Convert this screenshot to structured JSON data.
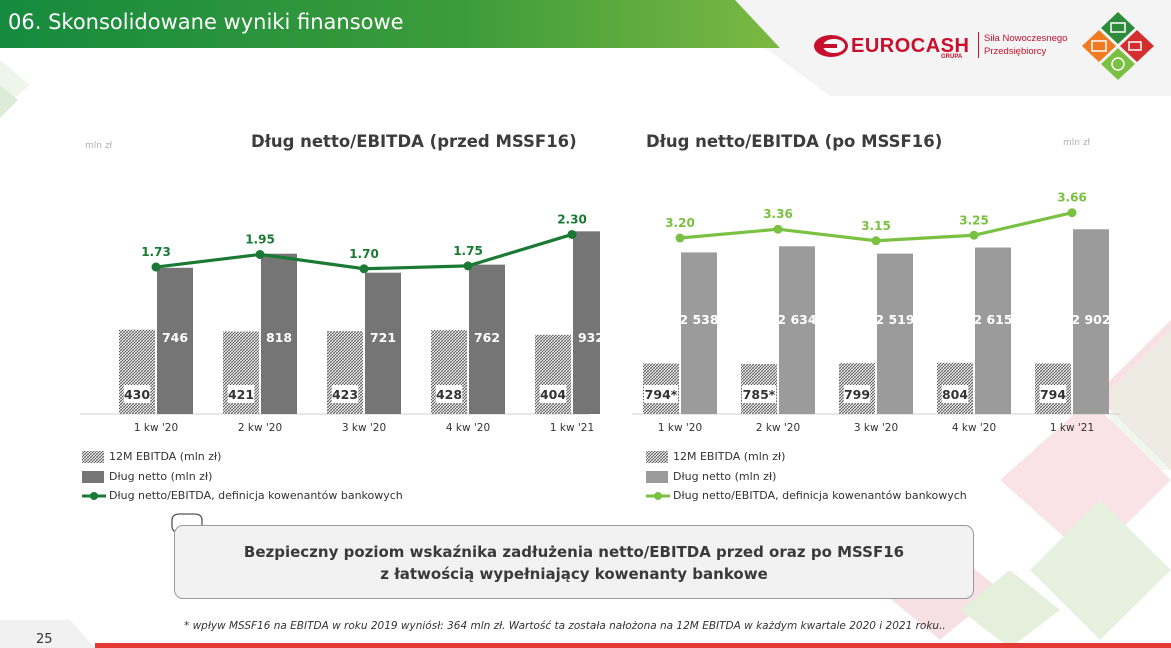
{
  "header": {
    "title": "06. Skonsolidowane wyniki finansowe"
  },
  "logo": {
    "name": "EUROCASH",
    "sub": "GRUPA",
    "slogan_line1": "Siła Nowoczesnego",
    "slogan_line2": "Przedsiębiorcy"
  },
  "colors": {
    "header_green": "#1b8a3a",
    "line_dark_green": "#1a7a35",
    "line_light_green": "#7ac142",
    "bar_dark_gray": "#757575",
    "bar_light_gray": "#9b9b9b",
    "brand_red": "#c8102e"
  },
  "chart_data": [
    {
      "type": "bar",
      "title": "Dług netto/EBITDA (przed MSSF16)",
      "unit_label": "mln zł",
      "categories": [
        "1 kw '20",
        "2 kw '20",
        "3 kw '20",
        "4 kw '20",
        "1 kw '21"
      ],
      "series": [
        {
          "name": "12M EBITDA (mln zł)",
          "kind": "bar",
          "pattern": "hatched",
          "values": [
            430,
            421,
            423,
            428,
            404
          ],
          "labels": [
            "430",
            "421",
            "423",
            "428",
            "404"
          ]
        },
        {
          "name": "Dług netto (mln zł)",
          "kind": "bar",
          "values": [
            746,
            818,
            721,
            762,
            932
          ],
          "labels": [
            "746",
            "818",
            "721",
            "762",
            "932"
          ]
        },
        {
          "name": "Dług netto/EBITDA, definicja kowenantów bankowych",
          "kind": "line",
          "color": "#1a7a35",
          "values": [
            1.73,
            1.95,
            1.7,
            1.75,
            2.3
          ],
          "labels": [
            "1.73",
            "1.95",
            "1.70",
            "1.75",
            "2.30"
          ]
        }
      ],
      "legend": [
        {
          "label": "12M EBITDA (mln zł)"
        },
        {
          "label": "Dług netto (mln zł)"
        },
        {
          "label": "Dług netto/EBITDA, definicja kowenantów bankowych"
        }
      ],
      "ylim": [
        0,
        1000
      ],
      "grid": false
    },
    {
      "type": "bar",
      "title": "Dług netto/EBITDA (po MSSF16)",
      "unit_label": "mln zł",
      "categories": [
        "1 kw '20",
        "2 kw '20",
        "3 kw '20",
        "4 kw '20",
        "1 kw '21"
      ],
      "series": [
        {
          "name": "12M EBITDA (mln zł)",
          "kind": "bar",
          "pattern": "hatched",
          "values": [
            794,
            785,
            799,
            804,
            794
          ],
          "labels": [
            "794*",
            "785*",
            "799",
            "804",
            "794"
          ]
        },
        {
          "name": "Dług netto (mln zł)",
          "kind": "bar",
          "values": [
            2538,
            2634,
            2519,
            2615,
            2902
          ],
          "labels": [
            "2 538",
            "2 634",
            "2 519",
            "2 615",
            "2 902"
          ]
        },
        {
          "name": "Dług netto/EBITDA, definicja kowenantów bankowych",
          "kind": "line",
          "color": "#7ac142",
          "values": [
            3.2,
            3.36,
            3.15,
            3.25,
            3.66
          ],
          "labels": [
            "3.20",
            "3.36",
            "3.15",
            "3.25",
            "3.66"
          ]
        }
      ],
      "legend": [
        {
          "label": "12M EBITDA (mln zł)"
        },
        {
          "label": "Dług netto (mln zł)"
        },
        {
          "label": "Dług netto/EBITDA, definicja kowenantów bankowych"
        }
      ],
      "ylim": [
        0,
        3000
      ],
      "grid": false
    }
  ],
  "callout": {
    "line1": "Bezpieczny poziom wskaźnika zadłużenia netto/EBITDA przed oraz po MSSF16",
    "line2": "z łatwością wypełniający kowenanty bankowe"
  },
  "footnote": "* wpływ MSSF16 na EBITDA w roku 2019 wyniósł: 364 mln zł. Wartość ta została nałożona na 12M EBITDA w każdym kwartale 2020 i 2021 roku..",
  "page_number": "25"
}
